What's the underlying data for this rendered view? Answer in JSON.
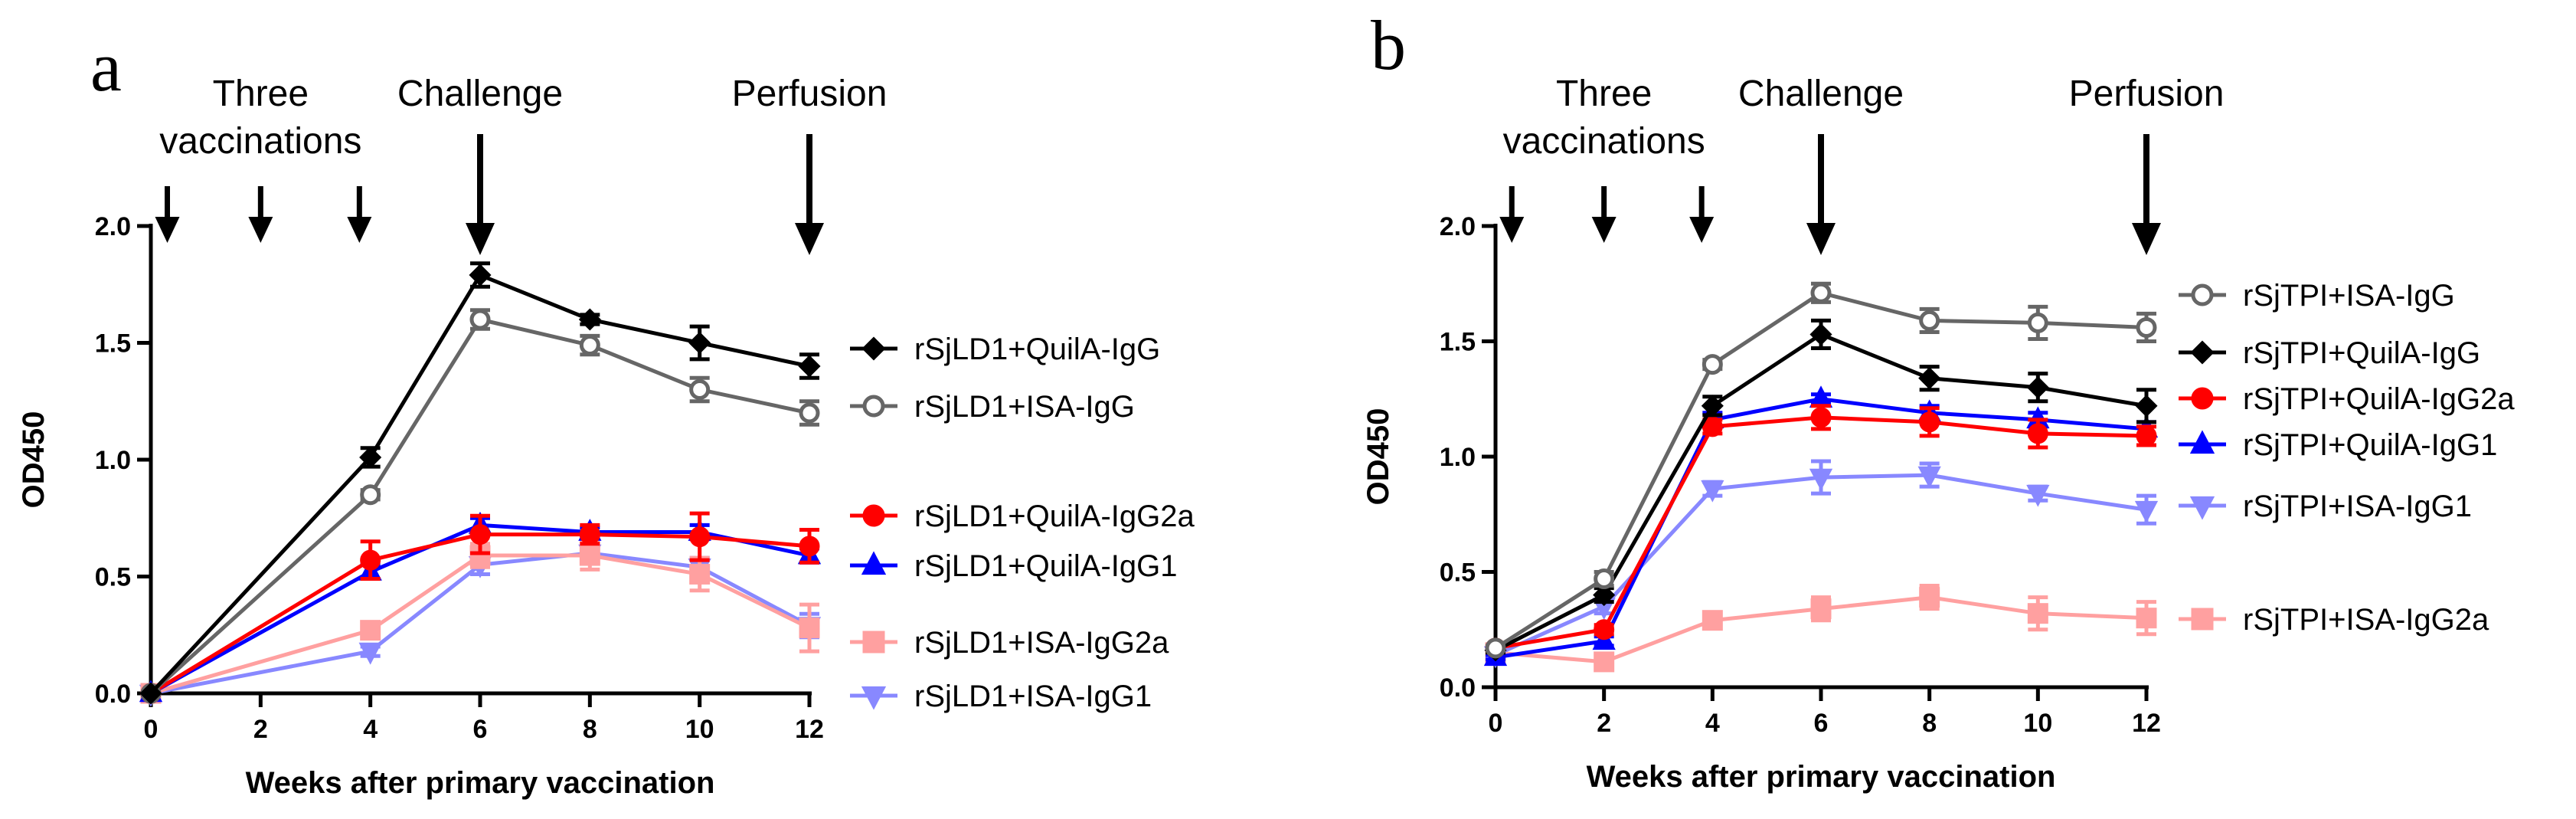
{
  "chart_data": [
    {
      "panel_label": "a",
      "type": "line",
      "title": "",
      "xlabel": "Weeks after primary vaccination",
      "ylabel": "OD450",
      "xlim": [
        0,
        12
      ],
      "ylim": [
        0,
        2.0
      ],
      "x_ticks": [
        0,
        2,
        4,
        6,
        8,
        10,
        12
      ],
      "y_ticks": [
        0.0,
        0.5,
        1.0,
        1.5,
        2.0
      ],
      "x_tick_labels": [
        "0",
        "2",
        "4",
        "6",
        "8",
        "10",
        "12"
      ],
      "y_tick_labels": [
        "0.0",
        "0.5",
        "1.0",
        "1.5",
        "2.0"
      ],
      "grid": false,
      "legend_position": "right",
      "event_arrows": [
        {
          "x": 0.3,
          "size": "small"
        },
        {
          "x": 2,
          "size": "small"
        },
        {
          "x": 3.8,
          "size": "small"
        },
        {
          "x": 6,
          "size": "large"
        },
        {
          "x": 12,
          "size": "large"
        }
      ],
      "annotations": [
        {
          "lines": [
            "Three",
            "vaccinations"
          ],
          "x": 2
        },
        {
          "lines": [
            "Challenge"
          ],
          "x": 6
        },
        {
          "lines": [
            "Perfusion"
          ],
          "x": 12
        }
      ],
      "x": [
        0,
        4,
        6,
        8,
        10,
        12
      ],
      "series": [
        {
          "name": "rSjLD1+QuilA-IgG",
          "values": [
            0,
            1.01,
            1.79,
            1.6,
            1.5,
            1.4
          ],
          "errors": [
            0,
            0.04,
            0.05,
            0.02,
            0.07,
            0.05
          ],
          "color": "#000000",
          "marker": "diamond",
          "fill": true
        },
        {
          "name": "rSjLD1+ISA-IgG",
          "values": [
            0,
            0.85,
            1.6,
            1.49,
            1.3,
            1.2
          ],
          "errors": [
            0,
            0.02,
            0.04,
            0.04,
            0.05,
            0.05
          ],
          "color": "#666666",
          "marker": "circle",
          "fill": false
        },
        {
          "name": "rSjLD1+QuilA-IgG2a",
          "values": [
            0,
            0.57,
            0.68,
            0.68,
            0.67,
            0.63
          ],
          "errors": [
            0,
            0.08,
            0.08,
            0.04,
            0.1,
            0.07
          ],
          "color": "#ff0000",
          "marker": "circle",
          "fill": true
        },
        {
          "name": "rSjLD1+QuilA-IgG1",
          "values": [
            0,
            0.52,
            0.72,
            0.69,
            0.69,
            0.59
          ],
          "errors": [
            0,
            0.03,
            0.03,
            0.02,
            0.03,
            0.03
          ],
          "color": "#0000ff",
          "marker": "triangle-up",
          "fill": true
        },
        {
          "name": "rSjLD1+ISA-IgG2a",
          "values": [
            0,
            0.27,
            0.59,
            0.59,
            0.51,
            0.28
          ],
          "errors": [
            0,
            0.02,
            0.05,
            0.06,
            0.07,
            0.1
          ],
          "color": "#ffa0a0",
          "marker": "square",
          "fill": true
        },
        {
          "name": "rSjLD1+ISA-IgG1",
          "values": [
            0,
            0.18,
            0.55,
            0.6,
            0.54,
            0.29
          ],
          "errors": [
            0,
            0.02,
            0.04,
            0.03,
            0.04,
            0.05
          ],
          "color": "#8888ff",
          "marker": "triangle-down",
          "fill": true
        }
      ]
    },
    {
      "panel_label": "b",
      "type": "line",
      "title": "",
      "xlabel": "Weeks after primary vaccination",
      "ylabel": "OD450",
      "xlim": [
        0,
        12
      ],
      "ylim": [
        0,
        2.0
      ],
      "x_ticks": [
        0,
        2,
        4,
        6,
        8,
        10,
        12
      ],
      "y_ticks": [
        0.0,
        0.5,
        1.0,
        1.5,
        2.0
      ],
      "x_tick_labels": [
        "0",
        "2",
        "4",
        "6",
        "8",
        "10",
        "12"
      ],
      "y_tick_labels": [
        "0.0",
        "0.5",
        "1.0",
        "1.5",
        "2.0"
      ],
      "grid": false,
      "legend_position": "right",
      "event_arrows": [
        {
          "x": 0.3,
          "size": "small"
        },
        {
          "x": 2,
          "size": "small"
        },
        {
          "x": 3.8,
          "size": "small"
        },
        {
          "x": 6,
          "size": "large"
        },
        {
          "x": 12,
          "size": "large"
        }
      ],
      "annotations": [
        {
          "lines": [
            "Three",
            "vaccinations"
          ],
          "x": 2
        },
        {
          "lines": [
            "Challenge"
          ],
          "x": 6
        },
        {
          "lines": [
            "Perfusion"
          ],
          "x": 12
        }
      ],
      "x": [
        0,
        2,
        4,
        6,
        8,
        10,
        12
      ],
      "series": [
        {
          "name": "rSjTPI+ISA-IgG",
          "values": [
            0.17,
            0.47,
            1.4,
            1.71,
            1.59,
            1.58,
            1.56
          ],
          "errors": [
            0.01,
            0.03,
            0.02,
            0.04,
            0.05,
            0.07,
            0.06
          ],
          "color": "#666666",
          "marker": "circle",
          "fill": false
        },
        {
          "name": "rSjTPI+QuilA-IgG",
          "values": [
            0.16,
            0.4,
            1.22,
            1.53,
            1.34,
            1.3,
            1.22
          ],
          "errors": [
            0.01,
            0.03,
            0.04,
            0.06,
            0.05,
            0.06,
            0.07
          ],
          "color": "#000000",
          "marker": "diamond",
          "fill": true
        },
        {
          "name": "rSjTPI+QuilA-IgG2a",
          "values": [
            0.17,
            0.25,
            1.13,
            1.17,
            1.15,
            1.1,
            1.09
          ],
          "errors": [
            0.01,
            0.02,
            0.03,
            0.05,
            0.06,
            0.06,
            0.04
          ],
          "color": "#ff0000",
          "marker": "circle",
          "fill": true
        },
        {
          "name": "rSjTPI+QuilA-IgG1",
          "values": [
            0.13,
            0.2,
            1.16,
            1.25,
            1.19,
            1.16,
            1.12
          ],
          "errors": [
            0.01,
            0.02,
            0.03,
            0.02,
            0.03,
            0.03,
            0.03
          ],
          "color": "#0000ff",
          "marker": "triangle-up",
          "fill": true
        },
        {
          "name": "rSjTPI+ISA-IgG1",
          "values": [
            0.14,
            0.35,
            0.86,
            0.91,
            0.92,
            0.84,
            0.77
          ],
          "errors": [
            0.01,
            0.03,
            0.03,
            0.07,
            0.05,
            0.03,
            0.06
          ],
          "color": "#8888ff",
          "marker": "triangle-down",
          "fill": true
        },
        {
          "name": "rSjTPI+ISA-IgG2a",
          "values": [
            0.15,
            0.11,
            0.29,
            0.34,
            0.39,
            0.32,
            0.3
          ],
          "errors": [
            0.01,
            0.02,
            0.02,
            0.05,
            0.05,
            0.07,
            0.07
          ],
          "color": "#ffa0a0",
          "marker": "square",
          "fill": true
        }
      ]
    }
  ]
}
